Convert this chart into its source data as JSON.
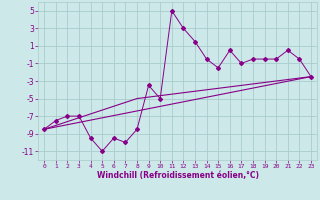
{
  "xlabel": "Windchill (Refroidissement éolien,°C)",
  "bg_color": "#cce8e8",
  "grid_color": "#aacccc",
  "line_color": "#880088",
  "xlim": [
    -0.5,
    23.5
  ],
  "ylim": [
    -12,
    6
  ],
  "yticks": [
    5,
    3,
    1,
    -1,
    -3,
    -5,
    -7,
    -9,
    -11
  ],
  "xticks": [
    0,
    1,
    2,
    3,
    4,
    5,
    6,
    7,
    8,
    9,
    10,
    11,
    12,
    13,
    14,
    15,
    16,
    17,
    18,
    19,
    20,
    21,
    22,
    23
  ],
  "line1_x": [
    0,
    1,
    2,
    3,
    4,
    5,
    6,
    7,
    8,
    9,
    10,
    11,
    12,
    13,
    14,
    15,
    16,
    17,
    18,
    19,
    20,
    21,
    22,
    23
  ],
  "line1_y": [
    -8.5,
    -7.5,
    -7.0,
    -7.0,
    -9.5,
    -11.0,
    -9.5,
    -10.0,
    -8.5,
    -3.5,
    -5.0,
    5.0,
    3.0,
    1.5,
    -0.5,
    -1.5,
    0.5,
    -1.0,
    -0.5,
    -0.5,
    -0.5,
    0.5,
    -0.5,
    -2.5
  ],
  "line2_x": [
    0,
    23
  ],
  "line2_y": [
    -8.5,
    -2.5
  ],
  "line3_x": [
    0,
    8,
    23
  ],
  "line3_y": [
    -8.5,
    -5.0,
    -2.5
  ]
}
